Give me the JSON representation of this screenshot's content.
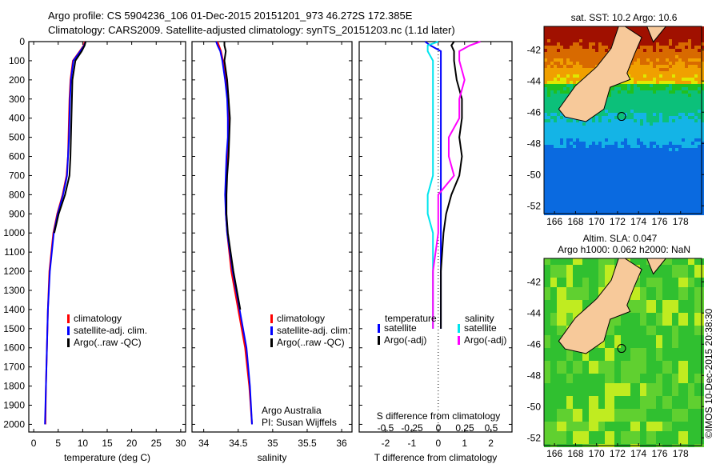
{
  "title_line1": "Argo profile: CS 5904236_106 01-Dec-2015 20151201_973 46.272S 172.385E",
  "title_line2": "Climatology: CARS2009. Satellite-adjusted climatology: synTS_20151203.nc (1.1d later)",
  "colors": {
    "climatology": "#ff0000",
    "satellite": "#0000ff",
    "argo": "#000000",
    "sal_satellite": "#00e5ee",
    "sal_argo": "#ff00ff"
  },
  "chart_data": [
    {
      "type": "line",
      "xlabel": "temperature (deg C)",
      "ylabel": "depth",
      "xlim": [
        -1,
        31
      ],
      "ylim": [
        2040,
        0
      ],
      "xticks": [
        0,
        5,
        10,
        15,
        20,
        25,
        30
      ],
      "yticks": [
        0,
        100,
        200,
        300,
        400,
        500,
        600,
        700,
        800,
        900,
        1000,
        1100,
        1200,
        1300,
        1400,
        1500,
        1600,
        1700,
        1800,
        1900,
        2000
      ],
      "legend": [
        "climatology",
        "satellite-adj. clim.",
        "Argo(..raw -QC)"
      ],
      "depth": [
        0,
        20,
        50,
        100,
        200,
        300,
        400,
        500,
        600,
        700,
        800,
        900,
        1000,
        1200,
        1400,
        1600,
        1800,
        2000
      ],
      "series": [
        {
          "name": "climatology",
          "values": [
            10.4,
            10.2,
            9.4,
            8.0,
            7.5,
            7.3,
            7.2,
            7.1,
            7.0,
            6.7,
            5.9,
            4.8,
            4.0,
            3.2,
            2.9,
            2.7,
            2.5,
            2.4
          ]
        },
        {
          "name": "satellite-adj. clim.",
          "values": [
            10.6,
            10.3,
            9.5,
            8.1,
            7.6,
            7.4,
            7.3,
            7.2,
            7.0,
            6.8,
            6.0,
            4.9,
            4.1,
            3.3,
            2.9,
            2.7,
            2.5,
            2.3
          ]
        },
        {
          "name": "Argo(..raw -QC)",
          "values": [
            10.6,
            10.4,
            9.8,
            8.5,
            7.9,
            7.8,
            7.7,
            7.6,
            7.5,
            7.3,
            6.4,
            5.1,
            4.2,
            null,
            null,
            null,
            null,
            null
          ]
        }
      ]
    },
    {
      "type": "line",
      "xlabel": "salinity",
      "xlim": [
        33.83,
        36.15
      ],
      "ylim": [
        2040,
        0
      ],
      "xticks": [
        34,
        34.5,
        35,
        35.5,
        36
      ],
      "legend": [
        "climatology",
        "satellite-adj. clim.",
        "Argo(..raw -QC)"
      ],
      "annotation": [
        "Argo Australia",
        "PI: Susan Wijffels"
      ],
      "depth": [
        0,
        20,
        50,
        100,
        200,
        300,
        400,
        500,
        600,
        700,
        800,
        900,
        1000,
        1200,
        1400,
        1600,
        1800,
        2000
      ],
      "series": [
        {
          "name": "climatology",
          "values": [
            34.2,
            34.22,
            34.25,
            34.28,
            34.33,
            34.36,
            34.37,
            34.36,
            34.34,
            34.33,
            34.32,
            34.32,
            34.34,
            34.4,
            34.5,
            34.6,
            34.66,
            34.7
          ]
        },
        {
          "name": "satellite-adj. clim.",
          "values": [
            34.18,
            34.2,
            34.24,
            34.27,
            34.31,
            34.34,
            34.35,
            34.35,
            34.33,
            34.32,
            34.31,
            34.32,
            34.34,
            34.42,
            34.52,
            34.62,
            34.67,
            34.7
          ]
        },
        {
          "name": "Argo(..raw -QC)",
          "values": [
            34.3,
            34.3,
            34.32,
            34.3,
            34.34,
            34.36,
            34.38,
            34.37,
            34.36,
            34.34,
            34.33,
            34.33,
            34.35,
            34.43,
            34.53,
            null,
            null,
            null
          ]
        }
      ]
    },
    {
      "type": "line",
      "xlabel": "T difference from climatology",
      "x2label": "S difference from climatology",
      "xlim": [
        -3,
        2.8
      ],
      "ylim": [
        2040,
        0
      ],
      "xticks": [
        -2,
        -1,
        0,
        1,
        2
      ],
      "x2ticks": [
        "-0.5",
        "-0.25",
        "0",
        "0.25",
        "0.5"
      ],
      "legend_headers": [
        "temperature",
        "salinity"
      ],
      "legend": [
        "satellite",
        "Argo(-adj)",
        "satellite",
        "Argo(-adj)"
      ],
      "depth": [
        0,
        20,
        50,
        100,
        200,
        300,
        400,
        500,
        600,
        700,
        800,
        900,
        1000,
        1200,
        1400,
        1500
      ],
      "series": [
        {
          "name": "T satellite",
          "values": [
            -0.5,
            -0.3,
            0.1,
            0.1,
            0.1,
            0.1,
            0.1,
            0.1,
            0.1,
            0.1,
            0.1,
            0.1,
            0.1,
            0.1,
            0.1,
            0.1
          ]
        },
        {
          "name": "T Argo(-adj)",
          "values": [
            0.6,
            0.5,
            0.6,
            0.6,
            0.7,
            0.9,
            0.9,
            0.8,
            0.9,
            0.8,
            0.5,
            0.3,
            0.2,
            0.1,
            0.1,
            0.1
          ]
        },
        {
          "name": "S satellite",
          "values": [
            0,
            -0.1,
            -0.1,
            -0.05,
            -0.05,
            -0.05,
            -0.05,
            -0.05,
            -0.05,
            -0.05,
            -0.1,
            -0.1,
            -0.05,
            -0.05,
            -0.05,
            -0.05
          ]
        },
        {
          "name": "S Argo(-adj)",
          "values": [
            0.4,
            0.3,
            0.2,
            0.2,
            0.25,
            0.2,
            0.2,
            0.1,
            0.1,
            0.15,
            0.0,
            0.0,
            0.0,
            -0.05,
            -0.05,
            -0.05
          ]
        }
      ]
    },
    {
      "type": "heatmap",
      "title": "sat. SST: 10.2 Argo: 10.6",
      "xticks": [
        166,
        168,
        170,
        172,
        174,
        176,
        178
      ],
      "yticks": [
        -42,
        -44,
        -46,
        -48,
        -50,
        -52
      ],
      "argo_position": [
        172.385,
        -46.272
      ]
    },
    {
      "type": "heatmap",
      "title": "Altim. SLA: 0.047",
      "subtitle": "Argo h1000: 0.062 h2000: NaN",
      "xticks": [
        166,
        168,
        170,
        172,
        174,
        176,
        178
      ],
      "yticks": [
        -42,
        -44,
        -46,
        -48,
        -50,
        -52
      ],
      "argo_position": [
        172.385,
        -46.272
      ]
    }
  ],
  "credit": "©IMOS 10-Dec-2015 20:38:30"
}
